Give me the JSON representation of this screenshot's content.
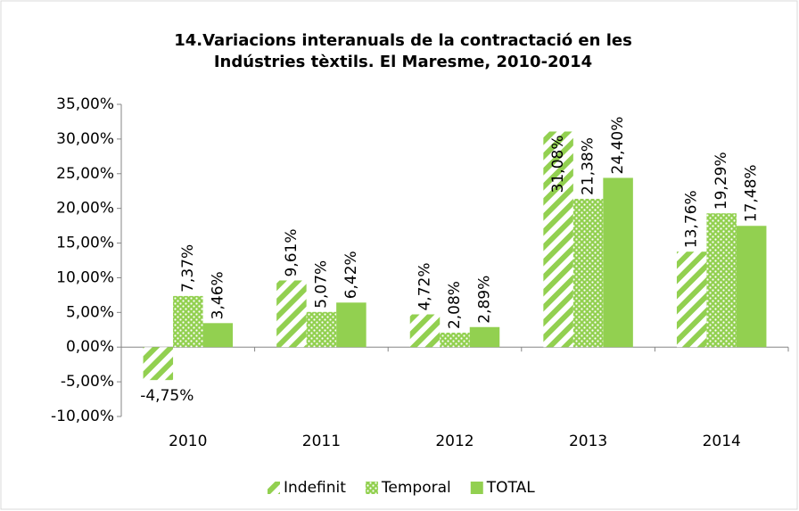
{
  "chart_data": {
    "type": "bar",
    "title": [
      "14.Variacions interanuals de la contractació en les",
      "Indústries tèxtils. El Maresme, 2010-2014"
    ],
    "categories": [
      "2010",
      "2011",
      "2012",
      "2013",
      "2014"
    ],
    "series": [
      {
        "name": "Indefinit",
        "color": "#92d050",
        "pattern": "stripes",
        "values": [
          -4.75,
          9.61,
          4.72,
          31.08,
          13.76
        ],
        "value_labels": [
          "-4,75%",
          "9,61%",
          "4,72%",
          "31,08%",
          "13,76%"
        ]
      },
      {
        "name": "Temporal",
        "color": "#92d050",
        "pattern": "dots",
        "values": [
          7.37,
          5.07,
          2.08,
          21.38,
          19.29
        ],
        "value_labels": [
          "7,37%",
          "5,07%",
          "2,08%",
          "21,38%",
          "19,29%"
        ]
      },
      {
        "name": "TOTAL",
        "color": "#92d050",
        "pattern": "solid",
        "values": [
          3.46,
          6.42,
          2.89,
          24.4,
          17.48
        ],
        "value_labels": [
          "3,46%",
          "6,42%",
          "2,89%",
          "24,40%",
          "17,48%"
        ]
      }
    ],
    "ylim": [
      -10,
      35
    ],
    "yticks": [
      {
        "value": -10,
        "label": "-10,00%"
      },
      {
        "value": -5,
        "label": "-5,00%"
      },
      {
        "value": 0,
        "label": "0,00%"
      },
      {
        "value": 5,
        "label": "5,00%"
      },
      {
        "value": 10,
        "label": "10,00%"
      },
      {
        "value": 15,
        "label": "15,00%"
      },
      {
        "value": 20,
        "label": "20,00%"
      },
      {
        "value": 25,
        "label": "25,00%"
      },
      {
        "value": 30,
        "label": "30,00%"
      },
      {
        "value": 35,
        "label": "35,00%"
      }
    ],
    "grid": false,
    "legend": "bottom"
  }
}
